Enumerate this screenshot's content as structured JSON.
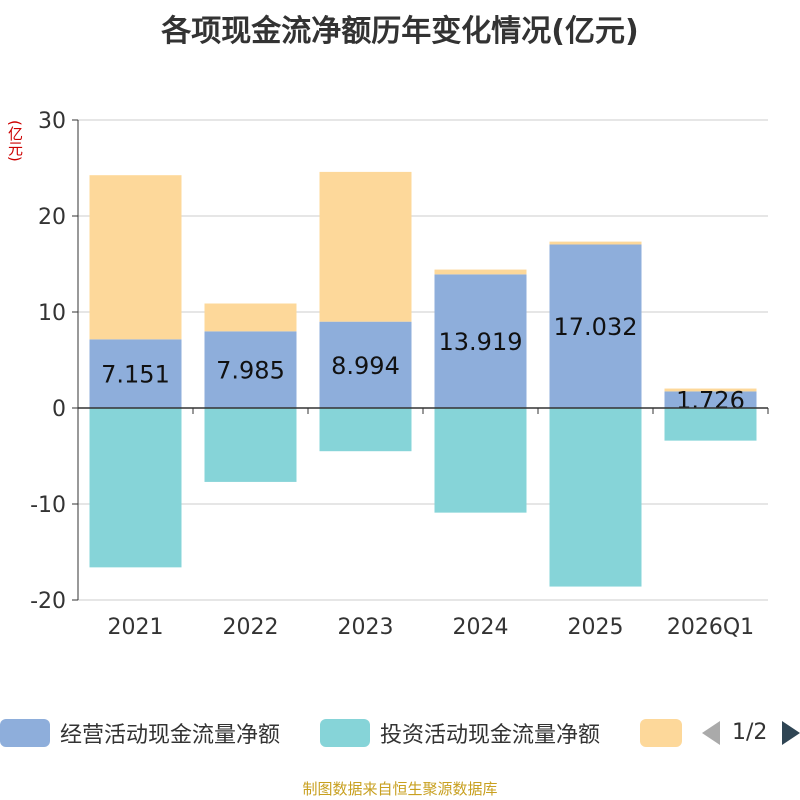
{
  "title": "各项现金流净额历年变化情况(亿元)",
  "unit_label": "(亿元)",
  "source": "制图数据来自恒生聚源数据库",
  "chart_data": {
    "type": "bar",
    "stacked": true,
    "categories": [
      "2021",
      "2022",
      "2023",
      "2024",
      "2025",
      "2026Q1"
    ],
    "ylim": [
      -20,
      30
    ],
    "yticks": [
      30,
      20,
      10,
      0,
      -10,
      -20
    ],
    "ytick_labels": [
      "30",
      "20",
      "10",
      "0",
      "-10",
      "-20"
    ],
    "grid": true,
    "legend_position": "bottom",
    "series": [
      {
        "name": "经营活动现金流量净额",
        "color": "#8eaedb",
        "values": [
          7.151,
          7.985,
          8.994,
          13.919,
          17.032,
          1.726
        ],
        "data_labels": [
          "7.151",
          "7.985",
          "8.994",
          "13.919",
          "17.032",
          "1.726"
        ]
      },
      {
        "name": "投资活动现金流量净额",
        "color": "#86d4d8",
        "values": [
          -16.6,
          -7.7,
          -4.5,
          -10.9,
          -18.6,
          -3.4
        ]
      },
      {
        "name": "",
        "color": "#fdd89a",
        "values": [
          17.1,
          2.9,
          15.6,
          0.5,
          0.3,
          0.3
        ]
      }
    ]
  },
  "legend": {
    "items": [
      {
        "label": "经营活动现金流量净额",
        "color": "#8eaedb"
      },
      {
        "label": "投资活动现金流量净额",
        "color": "#86d4d8"
      },
      {
        "label": "",
        "color": "#fdd89a"
      }
    ],
    "page": "1/2"
  }
}
